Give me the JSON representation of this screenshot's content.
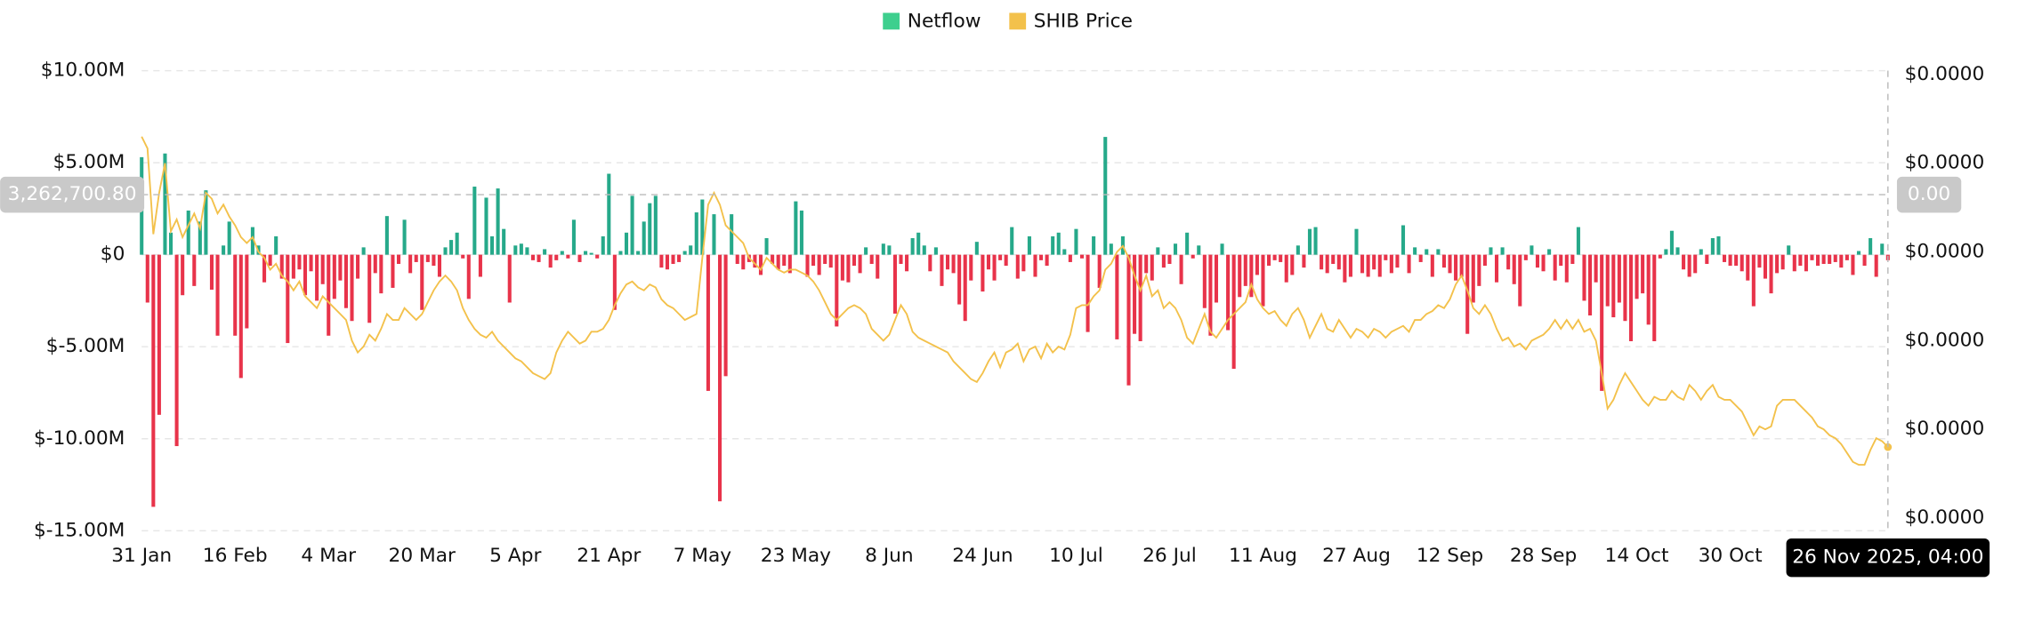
{
  "chart_data": {
    "type": "bar-line",
    "legend": "top",
    "grid": true,
    "series": [
      {
        "name": "Netflow",
        "type": "bar",
        "color": "#3ecf8e",
        "up_color": "#26a98a",
        "down_color": "#e8334a",
        "values": [
          5300000.0,
          -2600000.0,
          -13700000.0,
          -8700000.0,
          5500000.0,
          1200000.0,
          -10400000.0,
          -2200000.0,
          2400000.0,
          -1700000.0,
          1800000.0,
          3500000.0,
          -1900000.0,
          -4400000.0,
          500000.0,
          1800000.0,
          -4400000.0,
          -6700000.0,
          -4000000.0,
          1500000.0,
          500000.0,
          -1500000.0,
          -600000.0,
          1000000.0,
          -1300000.0,
          -4800000.0,
          -1300000.0,
          -800000.0,
          -2200000.0,
          -900000.0,
          -2500000.0,
          -1600000.0,
          -4400000.0,
          -2400000.0,
          -1400000.0,
          -2900000.0,
          -3600000.0,
          -1300000.0,
          400000.0,
          -3700000.0,
          -1000000.0,
          -2100000.0,
          2100000.0,
          -1800000.0,
          -500000.0,
          1900000.0,
          -1000000.0,
          -400000.0,
          -3000000.0,
          -400000.0,
          -600000.0,
          -1200000.0,
          400000.0,
          800000.0,
          1200000.0,
          -200000.0,
          -2400000.0,
          3700000.0,
          -1200000.0,
          3100000.0,
          1000000.0,
          3600000.0,
          1400000.0,
          -2600000.0,
          500000.0,
          600000.0,
          400000.0,
          -300000.0,
          -400000.0,
          300000.0,
          -700000.0,
          -300000.0,
          200000.0,
          -200000.0,
          1900000.0,
          -400000.0,
          200000.0,
          100000.0,
          -200000.0,
          1000000.0,
          4400000.0,
          -3000000.0,
          200000.0,
          1200000.0,
          3200000.0,
          200000.0,
          1800000.0,
          2800000.0,
          3200000.0,
          -700000.0,
          -800000.0,
          -500000.0,
          -400000.0,
          200000.0,
          500000.0,
          2300000.0,
          3000000.0,
          -7400000.0,
          2200000.0,
          -13400000.0,
          -6600000.0,
          2200000.0,
          -500000.0,
          -800000.0,
          -400000.0,
          -700000.0,
          -1100000.0,
          900000.0,
          -500000.0,
          -800000.0,
          -600000.0,
          -1000000.0,
          2900000.0,
          2400000.0,
          -1200000.0,
          -600000.0,
          -1100000.0,
          -500000.0,
          -700000.0,
          -3900000.0,
          -1400000.0,
          -1500000.0,
          -600000.0,
          -1000000.0,
          400000.0,
          -500000.0,
          -1300000.0,
          600000.0,
          500000.0,
          -3200000.0,
          -500000.0,
          -900000.0,
          900000.0,
          1200000.0,
          500000.0,
          -900000.0,
          400000.0,
          -1700000.0,
          -800000.0,
          -1000000.0,
          -2700000.0,
          -3600000.0,
          -1400000.0,
          700000.0,
          -2000000.0,
          -800000.0,
          -1400000.0,
          -300000.0,
          -600000.0,
          1500000.0,
          -1300000.0,
          -900000.0,
          1000000.0,
          -1200000.0,
          -300000.0,
          -600000.0,
          1000000.0,
          1200000.0,
          300000.0,
          -400000.0,
          1400000.0,
          -200000.0,
          -4200000.0,
          1000000.0,
          -1800000.0,
          6400000.0,
          600000.0,
          -4600000.0,
          1000000.0,
          -7100000.0,
          -4300000.0,
          -4700000.0,
          -1000000.0,
          -1400000.0,
          400000.0,
          -700000.0,
          -500000.0,
          600000.0,
          -1600000.0,
          1200000.0,
          -200000.0,
          500000.0,
          -2900000.0,
          -4400000.0,
          -2600000.0,
          600000.0,
          -4100000.0,
          -6200000.0,
          -2300000.0,
          -1700000.0,
          -2300000.0,
          -1100000.0,
          -2800000.0,
          -600000.0,
          -300000.0,
          -400000.0,
          -1500000.0,
          -1100000.0,
          500000.0,
          -700000.0,
          1400000.0,
          1500000.0,
          -800000.0,
          -1000000.0,
          -500000.0,
          -800000.0,
          -1500000.0,
          -1200000.0,
          1400000.0,
          -1000000.0,
          -1200000.0,
          -800000.0,
          -1200000.0,
          -300000.0,
          -1000000.0,
          -700000.0,
          1600000.0,
          -1000000.0,
          400000.0,
          -400000.0,
          300000.0,
          -1200000.0,
          300000.0,
          -700000.0,
          -1000000.0,
          -1400000.0,
          -1200000.0,
          -4300000.0,
          -2600000.0,
          -1700000.0,
          -600000.0,
          400000.0,
          -1500000.0,
          400000.0,
          -800000.0,
          -1600000.0,
          -2800000.0,
          -300000.0,
          500000.0,
          -700000.0,
          -900000.0,
          300000.0,
          -1400000.0,
          -600000.0,
          -1500000.0,
          -500000.0,
          1500000.0,
          -2500000.0,
          -3300000.0,
          -1500000.0,
          -7400000.0,
          -2800000.0,
          -3400000.0,
          -2600000.0,
          -3600000.0,
          -4700000.0,
          -2400000.0,
          -2100000.0,
          -3800000.0,
          -4700000.0,
          -200000.0,
          300000.0,
          1300000.0,
          400000.0,
          -800000.0,
          -1200000.0,
          -1000000.0,
          300000.0,
          -500000.0,
          900000.0,
          1000000.0,
          -400000.0,
          -600000.0,
          -600000.0,
          -900000.0,
          -1400000.0,
          -2800000.0,
          -700000.0,
          -1300000.0,
          -2100000.0,
          -1000000.0,
          -800000.0,
          500000.0,
          -900000.0,
          -600000.0,
          -900000.0,
          -300000.0,
          -600000.0,
          -500000.0,
          -500000.0,
          -400000.0,
          -700000.0,
          -300000.0,
          -1100000.0,
          200000.0,
          -600000.0,
          900000.0,
          -1200000.0,
          600000.0,
          -300000.0
        ]
      },
      {
        "name": "SHIB Price",
        "type": "line",
        "axis": "y2",
        "color": "#f3c14b",
        "values": [
          1.89e-05,
          1.85e-05,
          1.56e-05,
          1.7e-05,
          1.8e-05,
          1.57e-05,
          1.61e-05,
          1.55e-05,
          1.59e-05,
          1.63e-05,
          1.58e-05,
          1.7e-05,
          1.68e-05,
          1.63e-05,
          1.66e-05,
          1.62e-05,
          1.59e-05,
          1.55e-05,
          1.53e-05,
          1.55e-05,
          1.5e-05,
          1.48e-05,
          1.44e-05,
          1.46e-05,
          1.42e-05,
          1.4e-05,
          1.37e-05,
          1.4e-05,
          1.35e-05,
          1.33e-05,
          1.31e-05,
          1.35e-05,
          1.33e-05,
          1.31e-05,
          1.29e-05,
          1.27e-05,
          1.2e-05,
          1.16e-05,
          1.18e-05,
          1.22e-05,
          1.2e-05,
          1.24e-05,
          1.29e-05,
          1.27e-05,
          1.27e-05,
          1.31e-05,
          1.29e-05,
          1.27e-05,
          1.29e-05,
          1.33e-05,
          1.37e-05,
          1.4e-05,
          1.42e-05,
          1.4e-05,
          1.37e-05,
          1.31e-05,
          1.27e-05,
          1.24e-05,
          1.22e-05,
          1.21e-05,
          1.23e-05,
          1.2e-05,
          1.18e-05,
          1.16e-05,
          1.14e-05,
          1.13e-05,
          1.11e-05,
          1.09e-05,
          1.08e-05,
          1.07e-05,
          1.09e-05,
          1.16e-05,
          1.2e-05,
          1.23e-05,
          1.21e-05,
          1.19e-05,
          1.2e-05,
          1.23e-05,
          1.23e-05,
          1.24e-05,
          1.27e-05,
          1.32e-05,
          1.36e-05,
          1.39e-05,
          1.4e-05,
          1.38e-05,
          1.37e-05,
          1.39e-05,
          1.38e-05,
          1.34e-05,
          1.32e-05,
          1.31e-05,
          1.29e-05,
          1.27e-05,
          1.28e-05,
          1.29e-05,
          1.48e-05,
          1.66e-05,
          1.7e-05,
          1.66e-05,
          1.59e-05,
          1.57e-05,
          1.55e-05,
          1.53e-05,
          1.48e-05,
          1.46e-05,
          1.44e-05,
          1.48e-05,
          1.46e-05,
          1.44e-05,
          1.43e-05,
          1.44e-05,
          1.44e-05,
          1.43e-05,
          1.42e-05,
          1.4e-05,
          1.37e-05,
          1.33e-05,
          1.29e-05,
          1.27e-05,
          1.29e-05,
          1.31e-05,
          1.32e-05,
          1.31e-05,
          1.29e-05,
          1.24e-05,
          1.22e-05,
          1.2e-05,
          1.22e-05,
          1.27e-05,
          1.32e-05,
          1.29e-05,
          1.23e-05,
          1.21e-05,
          1.2e-05,
          1.19e-05,
          1.18e-05,
          1.17e-05,
          1.16e-05,
          1.13e-05,
          1.11e-05,
          1.09e-05,
          1.07e-05,
          1.06e-05,
          1.09e-05,
          1.13e-05,
          1.16e-05,
          1.11e-05,
          1.16e-05,
          1.17e-05,
          1.19e-05,
          1.13e-05,
          1.17e-05,
          1.18e-05,
          1.14e-05,
          1.19e-05,
          1.16e-05,
          1.18e-05,
          1.17e-05,
          1.22e-05,
          1.31e-05,
          1.32e-05,
          1.32e-05,
          1.35e-05,
          1.37e-05,
          1.44e-05,
          1.46e-05,
          1.5e-05,
          1.52e-05,
          1.48e-05,
          1.42e-05,
          1.37e-05,
          1.42e-05,
          1.35e-05,
          1.37e-05,
          1.31e-05,
          1.33e-05,
          1.31e-05,
          1.27e-05,
          1.21e-05,
          1.19e-05,
          1.24e-05,
          1.29e-05,
          1.23e-05,
          1.21e-05,
          1.24e-05,
          1.27e-05,
          1.29e-05,
          1.31e-05,
          1.33e-05,
          1.39e-05,
          1.34e-05,
          1.31e-05,
          1.29e-05,
          1.3e-05,
          1.27e-05,
          1.25e-05,
          1.29e-05,
          1.31e-05,
          1.27e-05,
          1.21e-05,
          1.25e-05,
          1.29e-05,
          1.24e-05,
          1.23e-05,
          1.27e-05,
          1.24e-05,
          1.21e-05,
          1.24e-05,
          1.23e-05,
          1.21e-05,
          1.24e-05,
          1.23e-05,
          1.21e-05,
          1.23e-05,
          1.24e-05,
          1.25e-05,
          1.23e-05,
          1.27e-05,
          1.27e-05,
          1.29e-05,
          1.3e-05,
          1.32e-05,
          1.31e-05,
          1.34e-05,
          1.39e-05,
          1.42e-05,
          1.37e-05,
          1.31e-05,
          1.29e-05,
          1.32e-05,
          1.29e-05,
          1.24e-05,
          1.2e-05,
          1.21e-05,
          1.18e-05,
          1.19e-05,
          1.17e-05,
          1.2e-05,
          1.21e-05,
          1.22e-05,
          1.24e-05,
          1.27e-05,
          1.24e-05,
          1.27e-05,
          1.24e-05,
          1.27e-05,
          1.23e-05,
          1.24e-05,
          1.2e-05,
          1.09e-05,
          9.7e-06,
          1e-05,
          1.05e-05,
          1.09e-05,
          1.06e-05,
          1.03e-05,
          1e-05,
          9.8e-06,
          1.01e-05,
          1e-05,
          1e-05,
          1.03e-05,
          1.01e-05,
          1e-05,
          1.05e-05,
          1.03e-05,
          1e-05,
          1.03e-05,
          1.05e-05,
          1.01e-05,
          1e-05,
          1e-05,
          9.8e-06,
          9.6e-06,
          9.2e-06,
          8.8e-06,
          9.1e-06,
          9e-06,
          9.1e-06,
          9.8e-06,
          1e-05,
          1e-05,
          1e-05,
          9.8e-06,
          9.6e-06,
          9.4e-06,
          9.1e-06,
          9e-06,
          8.8e-06,
          8.7e-06,
          8.5e-06,
          8.2e-06,
          7.9e-06,
          7.8e-06,
          7.8e-06,
          8.3e-06,
          8.7e-06,
          8.6e-06,
          8.4e-06
        ]
      }
    ],
    "categories": [
      "31 Jan",
      null,
      null,
      null,
      null,
      null,
      null,
      null,
      null,
      null,
      null,
      null,
      null,
      null,
      null,
      null,
      "16 Feb",
      null,
      null,
      null,
      null,
      null,
      null,
      null,
      null,
      null,
      null,
      null,
      null,
      null,
      null,
      null,
      "4 Mar",
      null,
      null,
      null,
      null,
      null,
      null,
      null,
      null,
      null,
      null,
      null,
      null,
      null,
      null,
      null,
      "20 Mar",
      null,
      null,
      null,
      null,
      null,
      null,
      null,
      null,
      null,
      null,
      null,
      null,
      null,
      null,
      null,
      "5 Apr",
      null,
      null,
      null,
      null,
      null,
      null,
      null,
      null,
      null,
      null,
      null,
      null,
      null,
      null,
      null,
      "21 Apr",
      null,
      null,
      null,
      null,
      null,
      null,
      null,
      null,
      null,
      null,
      null,
      null,
      null,
      null,
      null,
      "7 May",
      null,
      null,
      null,
      null,
      null,
      null,
      null,
      null,
      null,
      null,
      null,
      null,
      null,
      null,
      null,
      "23 May",
      null,
      null,
      null,
      null,
      null,
      null,
      null,
      null,
      null,
      null,
      null,
      null,
      null,
      null,
      null,
      "8 Jun",
      null,
      null,
      null,
      null,
      null,
      null,
      null,
      null,
      null,
      null,
      null,
      null,
      null,
      null,
      null,
      "24 Jun",
      null,
      null,
      null,
      null,
      null,
      null,
      null,
      null,
      null,
      null,
      null,
      null,
      null,
      null,
      null,
      "10 Jul",
      null,
      null,
      null,
      null,
      null,
      null,
      null,
      null,
      null,
      null,
      null,
      null,
      null,
      null,
      null,
      "26 Jul",
      null,
      null,
      null,
      null,
      null,
      null,
      null,
      null,
      null,
      null,
      null,
      null,
      null,
      null,
      null,
      "11 Aug",
      null,
      null,
      null,
      null,
      null,
      null,
      null,
      null,
      null,
      null,
      null,
      null,
      null,
      null,
      null,
      "27 Aug",
      null,
      null,
      null,
      null,
      null,
      null,
      null,
      null,
      null,
      null,
      null,
      null,
      null,
      null,
      null,
      "12 Sep",
      null,
      null,
      null,
      null,
      null,
      null,
      null,
      null,
      null,
      null,
      null,
      null,
      null,
      null,
      null,
      "28 Sep",
      null,
      null,
      null,
      null,
      null,
      null,
      null,
      null,
      null,
      null,
      null,
      null,
      null,
      null,
      null,
      "14 Oct",
      null,
      null,
      null,
      null,
      null,
      null,
      null,
      null,
      null,
      null,
      null,
      null,
      null,
      null,
      null,
      "30 Oct",
      null,
      null,
      null,
      null,
      null,
      null,
      null,
      null,
      null,
      null,
      null,
      null,
      null,
      null,
      null,
      null,
      null,
      null,
      null,
      null,
      null,
      null,
      null,
      null,
      null,
      null,
      "26 Nov 2025, 04:00"
    ],
    "ylim": [
      -15000000,
      10000000
    ],
    "yticks": [
      {
        "value": 10000000,
        "label": "$10.00M"
      },
      {
        "value": 5000000,
        "label": "$5.00M"
      },
      {
        "value": 0,
        "label": "$0"
      },
      {
        "value": -5000000,
        "label": "$-5.00M"
      },
      {
        "value": -10000000,
        "label": "$-10.00M"
      },
      {
        "value": -15000000,
        "label": "$-15.00M"
      }
    ],
    "y2lim": [
      5.57e-06,
      2.113e-05
    ],
    "y2ticks": [
      {
        "value": 2.1e-05,
        "label": "$0.0000"
      },
      {
        "value": 1.8e-05,
        "label": "$0.0000"
      },
      {
        "value": 1.5e-05,
        "label": "$0.0000"
      },
      {
        "value": 1.2e-05,
        "label": "$0.0000"
      },
      {
        "value": 9e-06,
        "label": "$0.0000"
      },
      {
        "value": 6e-06,
        "label": "$0.0000"
      }
    ],
    "crosshair": {
      "y": {
        "value": 3262700.8,
        "label": "3,262,700.80"
      },
      "y2_label": "0.00"
    }
  }
}
